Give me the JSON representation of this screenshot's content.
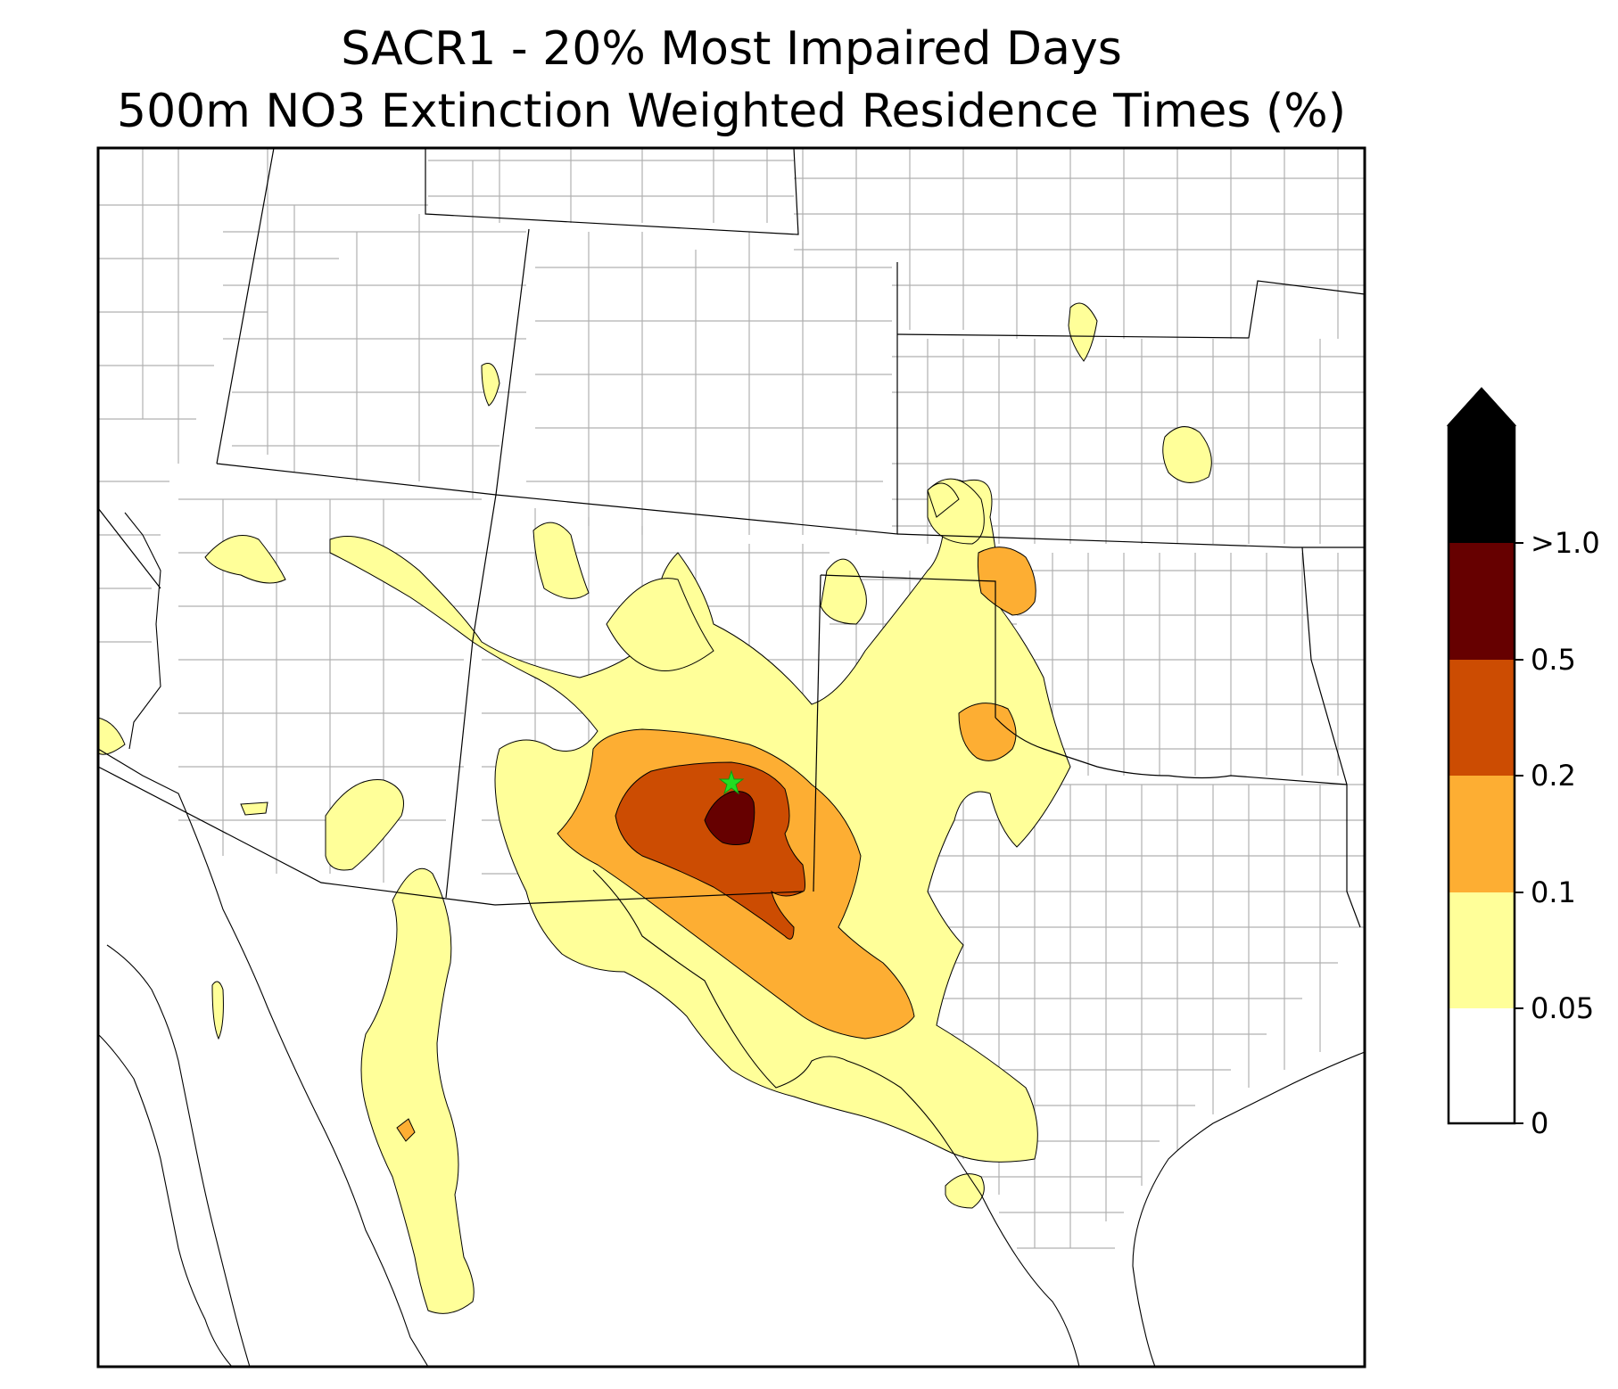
{
  "title": {
    "line1": "SACR1 - 20% Most Impaired Days",
    "line2": "500m NO3 Extinction Weighted Residence Times (%)"
  },
  "colorbar": {
    "levels": [
      "0",
      "0.05",
      "0.1",
      "0.2",
      "0.5",
      ">1.0"
    ],
    "colors": {
      "0-0.05": "#ffffff",
      "0.05-0.1": "#ffff99",
      "0.1-0.2": "#fdae33",
      "0.2-0.5": "#cc4c02",
      "0.5-1.0": "#660000",
      "over": "#000000"
    }
  },
  "map": {
    "receptor_marker": "green-star-icon",
    "marker_color": "#22dd22",
    "state_line_color": "#000000",
    "county_line_color": "#aaaaaa"
  }
}
